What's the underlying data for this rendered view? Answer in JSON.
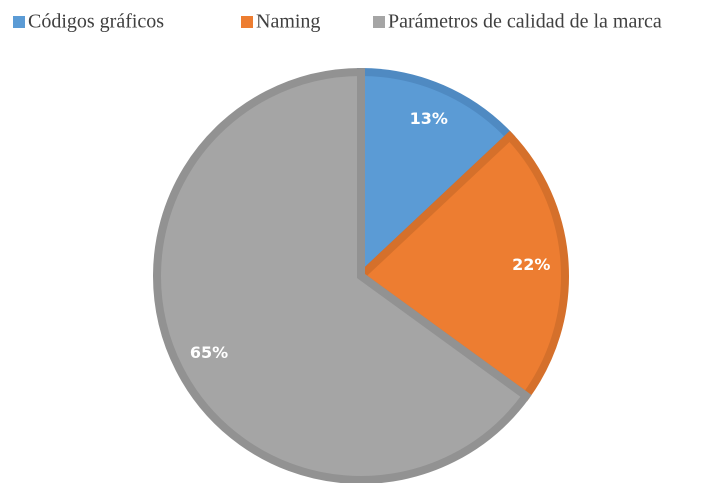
{
  "chart_data": {
    "type": "pie",
    "categories": [
      "Códigos gráficos",
      "Naming",
      "Parámetros de calidad de la marca"
    ],
    "values": [
      13,
      22,
      65
    ],
    "value_labels": [
      "13%",
      "22%",
      "65%"
    ],
    "colors": [
      "#5b9bd5",
      "#ed7d31",
      "#a5a5a5"
    ],
    "edge_colors": [
      "#4f8ac2",
      "#d5702b",
      "#929292"
    ],
    "legend": "top"
  }
}
